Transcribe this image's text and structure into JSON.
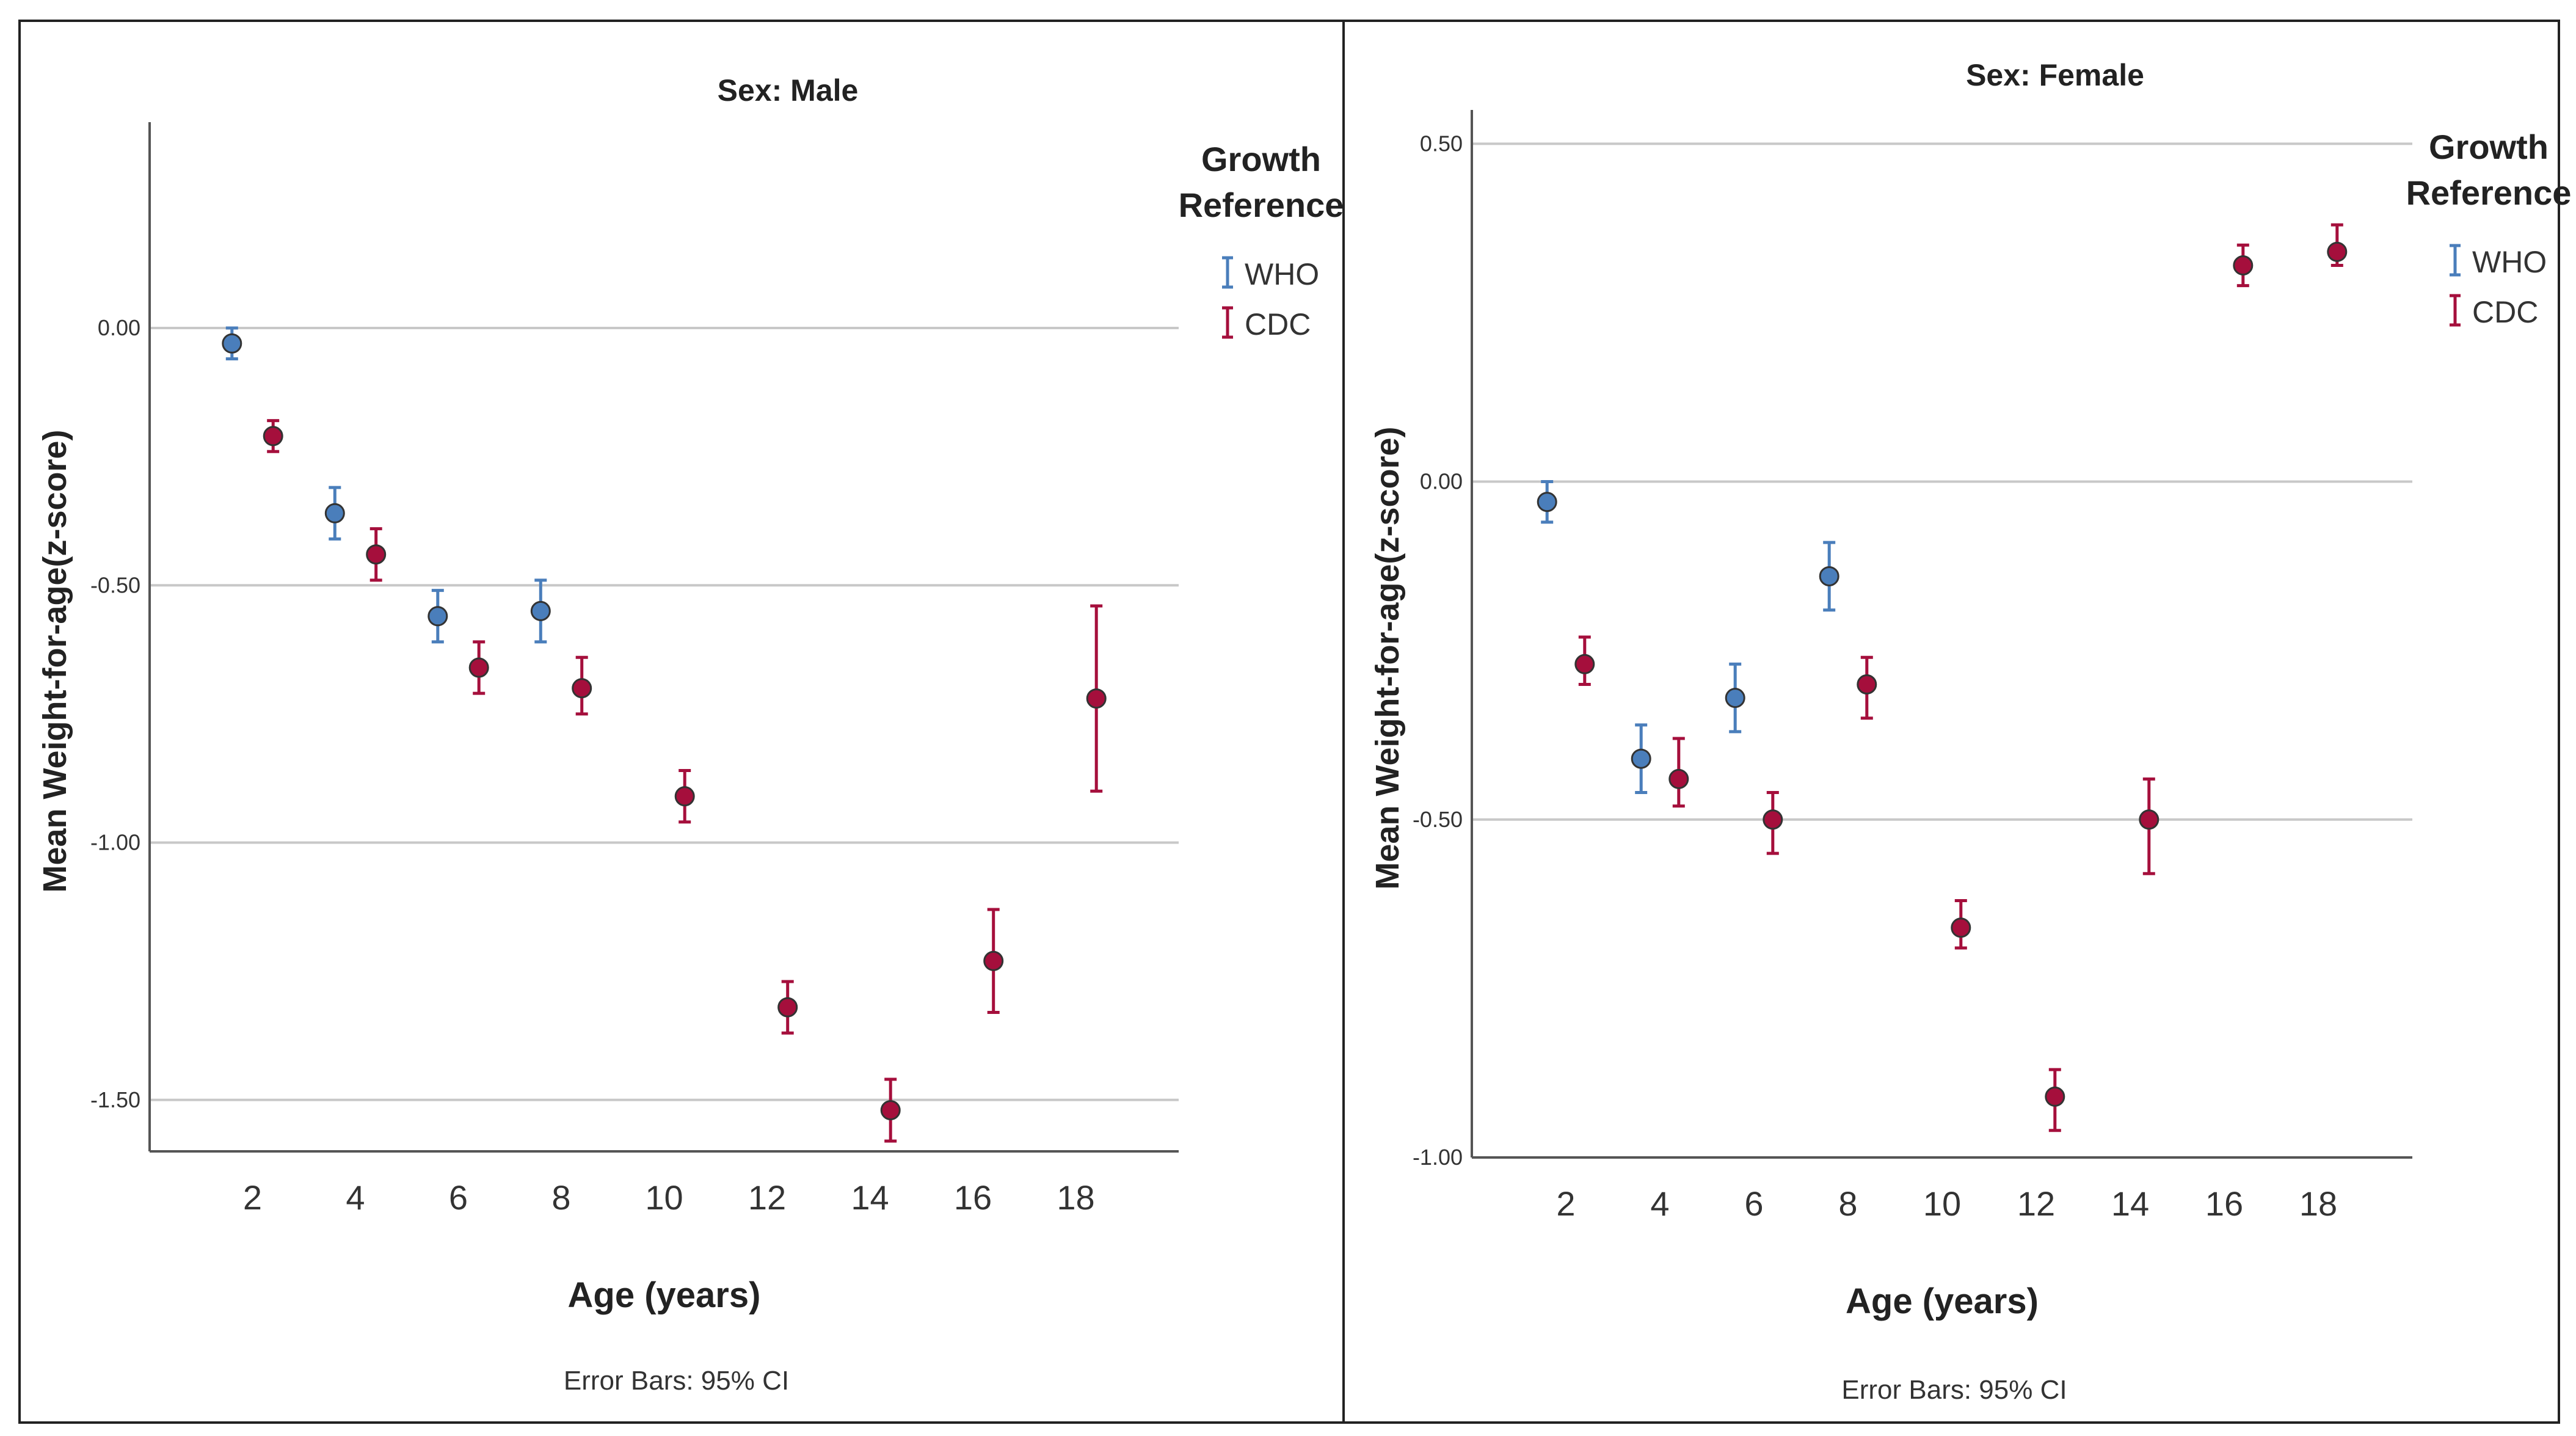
{
  "chart_data": [
    {
      "type": "scatter",
      "panel_title": "Sex: Male",
      "xlabel": "Age (years)",
      "ylabel": "Mean Weight-for-age(z-score)",
      "footnote": "Error Bars: 95% CI",
      "xticks": [
        "2",
        "4",
        "6",
        "8",
        "10",
        "12",
        "14",
        "16",
        "18"
      ],
      "xlim": [
        0,
        20
      ],
      "yticks": [
        0.0,
        -0.5,
        -1.0,
        -1.5
      ],
      "ytick_labels": [
        "0.00",
        "-0.50",
        "-1.00",
        "-1.50"
      ],
      "ylim": [
        -1.6,
        0.4
      ],
      "grid": "horizontal",
      "legend": {
        "title": "Growth Reference",
        "position": "top-right",
        "entries": [
          {
            "label": "WHO",
            "color": "#4a7ebb"
          },
          {
            "label": "CDC",
            "color": "#a50f3c"
          }
        ]
      },
      "series": [
        {
          "name": "WHO",
          "color": "#4a7ebb",
          "points": [
            {
              "x": 1.6,
              "y": -0.03,
              "lo": -0.06,
              "hi": 0.0
            },
            {
              "x": 3.6,
              "y": -0.36,
              "lo": -0.41,
              "hi": -0.31
            },
            {
              "x": 5.6,
              "y": -0.56,
              "lo": -0.61,
              "hi": -0.51
            },
            {
              "x": 7.6,
              "y": -0.55,
              "lo": -0.61,
              "hi": -0.49
            }
          ]
        },
        {
          "name": "CDC",
          "color": "#a50f3c",
          "points": [
            {
              "x": 2.4,
              "y": -0.21,
              "lo": -0.24,
              "hi": -0.18
            },
            {
              "x": 4.4,
              "y": -0.44,
              "lo": -0.49,
              "hi": -0.39
            },
            {
              "x": 6.4,
              "y": -0.66,
              "lo": -0.71,
              "hi": -0.61
            },
            {
              "x": 8.4,
              "y": -0.7,
              "lo": -0.75,
              "hi": -0.64
            },
            {
              "x": 10.4,
              "y": -0.91,
              "lo": -0.96,
              "hi": -0.86
            },
            {
              "x": 12.4,
              "y": -1.32,
              "lo": -1.37,
              "hi": -1.27
            },
            {
              "x": 14.4,
              "y": -1.52,
              "lo": -1.58,
              "hi": -1.46
            },
            {
              "x": 16.4,
              "y": -1.23,
              "lo": -1.33,
              "hi": -1.13
            },
            {
              "x": 18.4,
              "y": -0.72,
              "lo": -0.9,
              "hi": -0.54
            }
          ]
        }
      ]
    },
    {
      "type": "scatter",
      "panel_title": "Sex: Female",
      "xlabel": "Age (years)",
      "ylabel": "Mean Weight-for-age(z-score)",
      "footnote": "Error Bars: 95% CI",
      "xticks": [
        "2",
        "4",
        "6",
        "8",
        "10",
        "12",
        "14",
        "16",
        "18"
      ],
      "xlim": [
        0,
        20
      ],
      "yticks": [
        0.5,
        0.0,
        -0.5,
        -1.0
      ],
      "ytick_labels": [
        "0.50",
        "0.00",
        "-0.50",
        "-1.00"
      ],
      "ylim": [
        -1.0,
        0.55
      ],
      "grid": "horizontal",
      "legend": {
        "title": "Growth Reference",
        "position": "top-right",
        "entries": [
          {
            "label": "WHO",
            "color": "#4a7ebb"
          },
          {
            "label": "CDC",
            "color": "#a50f3c"
          }
        ]
      },
      "series": [
        {
          "name": "WHO",
          "color": "#4a7ebb",
          "points": [
            {
              "x": 1.6,
              "y": -0.03,
              "lo": -0.06,
              "hi": 0.0
            },
            {
              "x": 3.6,
              "y": -0.41,
              "lo": -0.46,
              "hi": -0.36
            },
            {
              "x": 5.6,
              "y": -0.32,
              "lo": -0.37,
              "hi": -0.27
            },
            {
              "x": 7.6,
              "y": -0.14,
              "lo": -0.19,
              "hi": -0.09
            }
          ]
        },
        {
          "name": "CDC",
          "color": "#a50f3c",
          "points": [
            {
              "x": 2.4,
              "y": -0.27,
              "lo": -0.3,
              "hi": -0.23
            },
            {
              "x": 4.4,
              "y": -0.44,
              "lo": -0.48,
              "hi": -0.38
            },
            {
              "x": 6.4,
              "y": -0.5,
              "lo": -0.55,
              "hi": -0.46
            },
            {
              "x": 8.4,
              "y": -0.3,
              "lo": -0.35,
              "hi": -0.26
            },
            {
              "x": 10.4,
              "y": -0.66,
              "lo": -0.69,
              "hi": -0.62
            },
            {
              "x": 12.4,
              "y": -0.91,
              "lo": -0.96,
              "hi": -0.87
            },
            {
              "x": 14.4,
              "y": -0.5,
              "lo": -0.58,
              "hi": -0.44
            },
            {
              "x": 16.4,
              "y": 0.32,
              "lo": 0.29,
              "hi": 0.35
            },
            {
              "x": 18.4,
              "y": 0.34,
              "lo": 0.32,
              "hi": 0.38
            }
          ]
        }
      ]
    }
  ]
}
